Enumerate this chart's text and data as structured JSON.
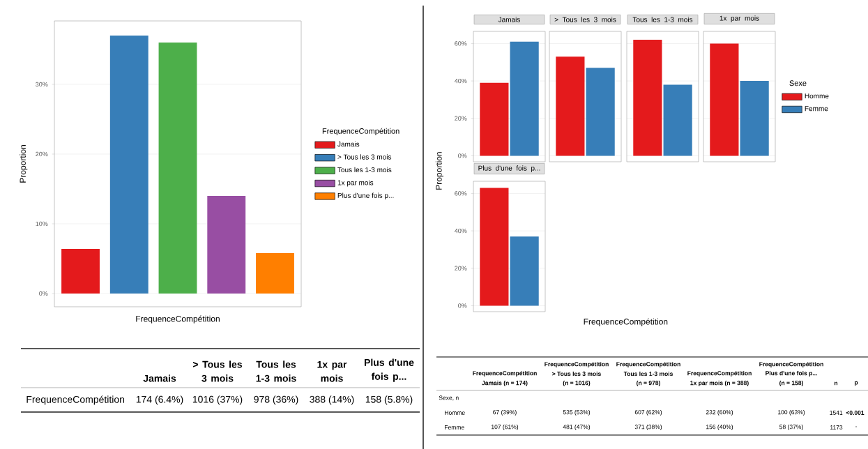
{
  "chart_data": [
    {
      "type": "bar",
      "categories": [
        null
      ],
      "series": [
        {
          "name": "Jamais",
          "color": "#e41a1c",
          "values": [
            6.4
          ]
        },
        {
          "name": "> Tous les 3 mois",
          "color": "#377eb8",
          "values": [
            37
          ]
        },
        {
          "name": "Tous les 1-3 mois",
          "color": "#4daf4a",
          "values": [
            36
          ]
        },
        {
          "name": "1x par mois",
          "color": "#984ea3",
          "values": [
            14
          ]
        },
        {
          "name": "Plus d'une fois p...",
          "color": "#ff7f00",
          "values": [
            5.8
          ]
        }
      ],
      "xlabel": "FrequenceCompétition",
      "ylabel": "Proportion",
      "legend_title": "FrequenceCompétition",
      "legend": "right",
      "ylim": [
        -1.9,
        39.1
      ],
      "yticks": [
        {
          "value": 0,
          "label": "0%"
        },
        {
          "value": 10,
          "label": "10%"
        },
        {
          "value": 20,
          "label": "20%"
        },
        {
          "value": 30,
          "label": "30%"
        }
      ],
      "grid": "y",
      "tick_labels": "y"
    },
    {
      "type": "other",
      "annotations": [
        "Jamais",
        "> Tous les 3 mois",
        "Tous les 1-3 mois",
        "1x par mois",
        "Plus d'une fois p...",
        "FrequenceCompétition",
        "174 (6.4%)",
        "1016 (37%)",
        "978 (36%)",
        "388 (14%)",
        "158 (5.8%)"
      ]
    },
    {
      "type": "bar",
      "categories": [
        "Jamais",
        "> Tous les 3 mois",
        "Tous les 1-3 mois",
        "1x par mois"
      ],
      "series": [
        {
          "name": "Homme",
          "color": "#e41a1c",
          "values": [
            39,
            53,
            62,
            60
          ]
        },
        {
          "name": "Femme",
          "color": "#377eb8",
          "values": [
            61,
            47,
            38,
            40
          ]
        }
      ],
      "ylim": [
        -3.2,
        66.5
      ],
      "yticks": [
        {
          "value": 0,
          "label": "0%"
        },
        {
          "value": 20,
          "label": "20%"
        },
        {
          "value": 40,
          "label": "40%"
        },
        {
          "value": 60,
          "label": "60%"
        }
      ],
      "grid": "y",
      "legend": "right",
      "legend_title": "Sexe"
    },
    {
      "type": "bar",
      "categories": [
        "Plus d'une fois p..."
      ],
      "series": [
        {
          "color": "#e41a1c",
          "values": [
            63
          ]
        },
        {
          "color": "#377eb8",
          "values": [
            37
          ]
        }
      ],
      "ylim": [
        -3.2,
        66.5
      ],
      "yticks": [
        {
          "value": 0,
          "label": "0%"
        },
        {
          "value": 20,
          "label": "20%"
        },
        {
          "value": 40,
          "label": "40%"
        },
        {
          "value": 60,
          "label": "60%"
        }
      ],
      "grid": "y",
      "xlabel": "FrequenceCompétition",
      "ylabel": "Proportion"
    },
    {
      "type": "other",
      "annotations": [
        "FrequenceCompétition",
        "Jamais (n = 174)",
        "FrequenceCompétition",
        "> Tous les 3 mois",
        "(n = 1016)",
        "FrequenceCompétition",
        "Tous les 1-3 mois",
        "(n = 978)",
        "FrequenceCompétition",
        "1x par mois (n = 388)",
        "FrequenceCompétition",
        "Plus d'une fois p...",
        "(n = 158)",
        "n",
        "p",
        "Sexe, n",
        "Homme",
        "67 (39%)",
        "535 (53%)",
        "607 (62%)",
        "232 (60%)",
        "100 (63%)",
        "1541",
        "**<0.001**",
        "Femme",
        "107 (61%)",
        "481 (47%)",
        "371 (38%)",
        "156 (40%)",
        "58 (37%)",
        "1173",
        "-"
      ]
    }
  ]
}
